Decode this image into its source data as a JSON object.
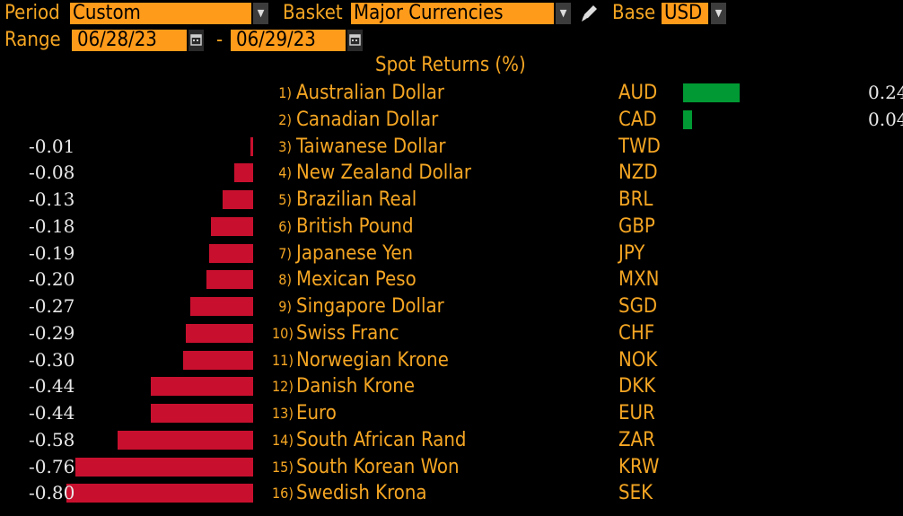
{
  "controls": {
    "period_label": "Period",
    "period_value": "Custom",
    "basket_label": "Basket",
    "basket_value": "Major Currencies",
    "base_label": "Base",
    "base_value": "USD",
    "range_label": "Range",
    "range_start": "06/28/23",
    "range_sep": "-",
    "range_end": "06/29/23"
  },
  "chart_data": {
    "type": "bar",
    "title": "Spot Returns (%)",
    "unit": "%",
    "colors": {
      "positive": "#009933",
      "negative": "#c8102e"
    },
    "rows": [
      {
        "rank": "1)",
        "name": "Australian Dollar",
        "code": "AUD",
        "value": 0.24,
        "label": "0.24"
      },
      {
        "rank": "2)",
        "name": "Canadian Dollar",
        "code": "CAD",
        "value": 0.04,
        "label": "0.04"
      },
      {
        "rank": "3)",
        "name": "Taiwanese Dollar",
        "code": "TWD",
        "value": -0.01,
        "label": "-0.01"
      },
      {
        "rank": "4)",
        "name": "New Zealand Dollar",
        "code": "NZD",
        "value": -0.08,
        "label": "-0.08"
      },
      {
        "rank": "5)",
        "name": "Brazilian Real",
        "code": "BRL",
        "value": -0.13,
        "label": "-0.13"
      },
      {
        "rank": "6)",
        "name": "British Pound",
        "code": "GBP",
        "value": -0.18,
        "label": "-0.18"
      },
      {
        "rank": "7)",
        "name": "Japanese Yen",
        "code": "JPY",
        "value": -0.19,
        "label": "-0.19"
      },
      {
        "rank": "8)",
        "name": "Mexican Peso",
        "code": "MXN",
        "value": -0.2,
        "label": "-0.20"
      },
      {
        "rank": "9)",
        "name": "Singapore Dollar",
        "code": "SGD",
        "value": -0.27,
        "label": "-0.27"
      },
      {
        "rank": "10)",
        "name": "Swiss Franc",
        "code": "CHF",
        "value": -0.29,
        "label": "-0.29"
      },
      {
        "rank": "11)",
        "name": "Norwegian Krone",
        "code": "NOK",
        "value": -0.3,
        "label": "-0.30"
      },
      {
        "rank": "12)",
        "name": "Danish Krone",
        "code": "DKK",
        "value": -0.44,
        "label": "-0.44"
      },
      {
        "rank": "13)",
        "name": "Euro",
        "code": "EUR",
        "value": -0.44,
        "label": "-0.44"
      },
      {
        "rank": "14)",
        "name": "South African Rand",
        "code": "ZAR",
        "value": -0.58,
        "label": "-0.58"
      },
      {
        "rank": "15)",
        "name": "South Korean Won",
        "code": "KRW",
        "value": -0.76,
        "label": "-0.76"
      },
      {
        "rank": "16)",
        "name": "Swedish Krona",
        "code": "SEK",
        "value": -0.8,
        "label": "-0.80"
      }
    ]
  }
}
